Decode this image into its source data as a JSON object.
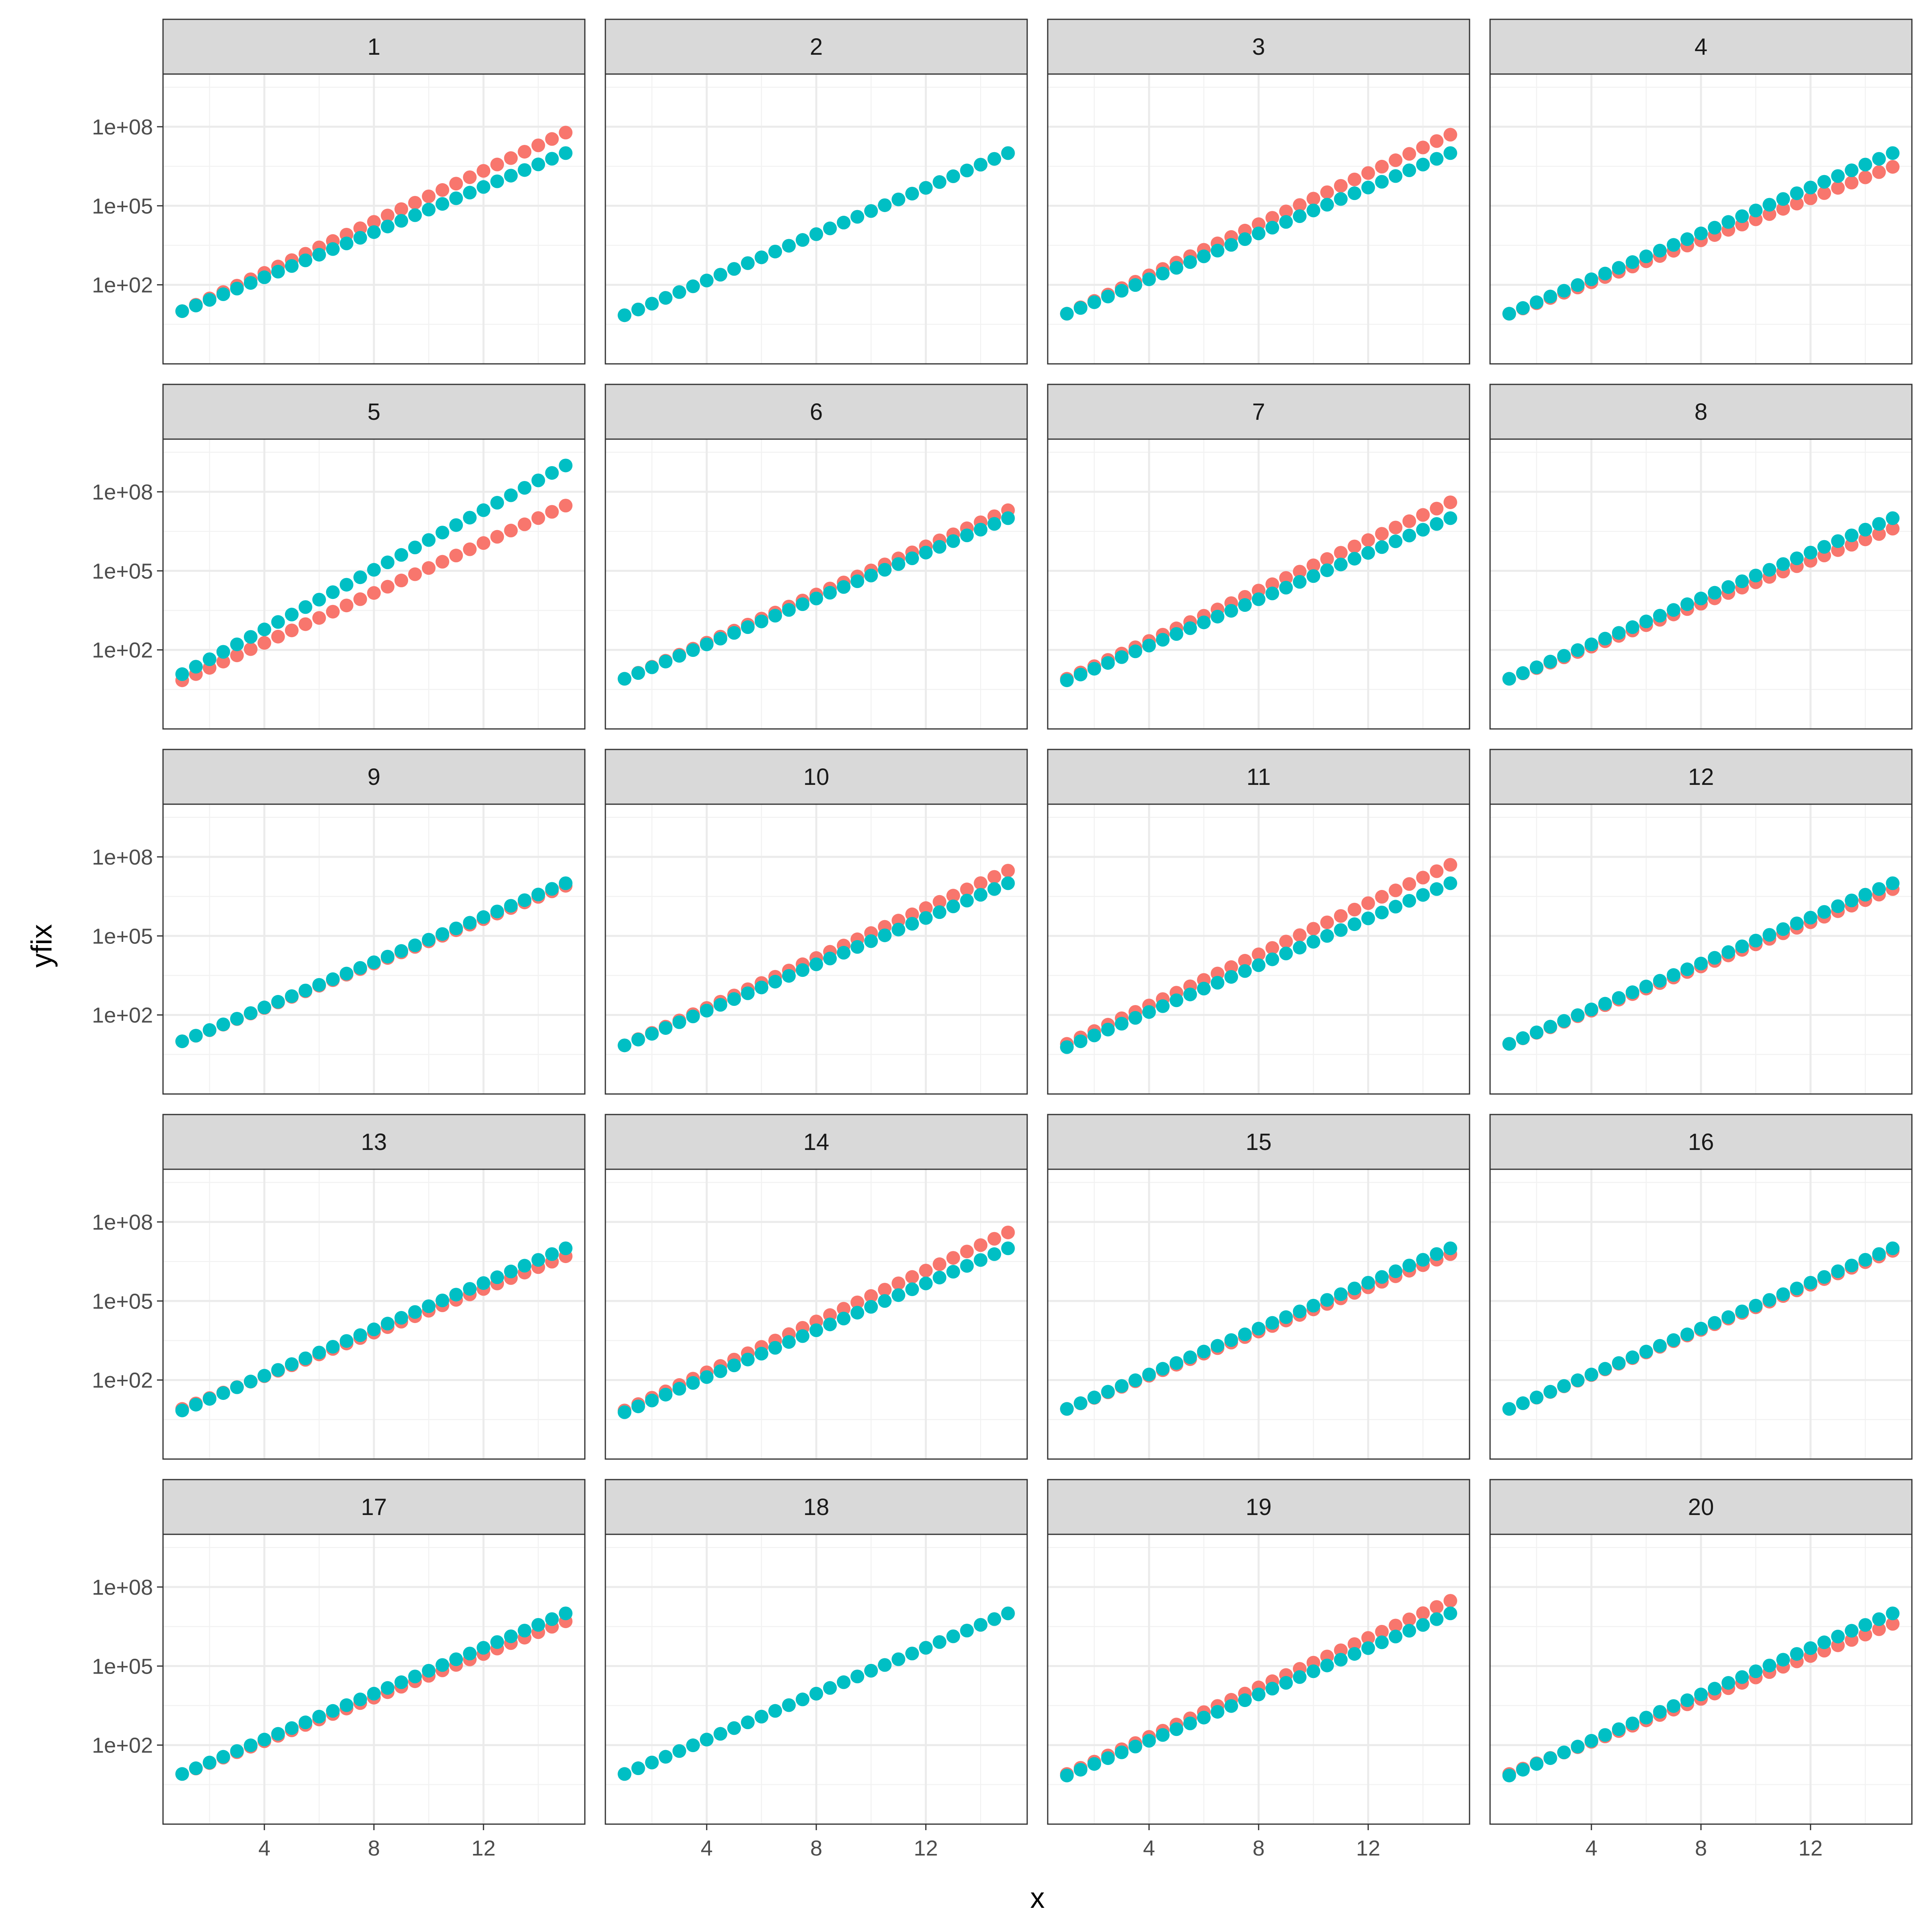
{
  "chart_data": {
    "type": "scatter",
    "facet_layout": "5x4",
    "xlabel": "x",
    "ylabel": "yfix",
    "y_scale": "log10",
    "xlim": [
      0.3,
      15.7
    ],
    "ylim": [
      0.1,
      10000000000
    ],
    "x_ticks": [
      4,
      8,
      12
    ],
    "x_tick_labels": [
      "4",
      "8",
      "12"
    ],
    "y_ticks": [
      100,
      100000,
      100000000
    ],
    "y_tick_labels": [
      "1e+02",
      "1e+05",
      "1e+08"
    ],
    "grid": true,
    "legend": "none",
    "series_colors": [
      "#F8766D",
      "#00BFC4"
    ],
    "x": [
      1,
      1.5,
      2,
      2.5,
      3,
      3.5,
      4,
      4.5,
      5,
      5.5,
      6,
      6.5,
      7,
      7.5,
      8,
      8.5,
      9,
      9.5,
      10,
      10.5,
      11,
      11.5,
      12,
      12.5,
      13,
      13.5,
      14,
      14.5,
      15
    ],
    "panels": [
      {
        "label": "1",
        "red": {
          "y_start": 10,
          "y_end": 60000000
        },
        "teal": {
          "y_start": 10,
          "y_end": 10000000
        }
      },
      {
        "label": "2",
        "red": {
          "y_start": 7,
          "y_end": 10000000
        },
        "teal": {
          "y_start": 7,
          "y_end": 10000000
        }
      },
      {
        "label": "3",
        "red": {
          "y_start": 8,
          "y_end": 50000000
        },
        "teal": {
          "y_start": 8,
          "y_end": 10000000
        }
      },
      {
        "label": "4",
        "red": {
          "y_start": 8,
          "y_end": 3000000
        },
        "teal": {
          "y_start": 8,
          "y_end": 10000000
        }
      },
      {
        "label": "5",
        "red": {
          "y_start": 7,
          "y_end": 30000000
        },
        "teal": {
          "y_start": 12,
          "y_end": 1000000000
        }
      },
      {
        "label": "6",
        "red": {
          "y_start": 8,
          "y_end": 20000000
        },
        "teal": {
          "y_start": 8,
          "y_end": 10000000
        }
      },
      {
        "label": "7",
        "red": {
          "y_start": 8,
          "y_end": 40000000
        },
        "teal": {
          "y_start": 7,
          "y_end": 10000000
        }
      },
      {
        "label": "8",
        "red": {
          "y_start": 8,
          "y_end": 4000000
        },
        "teal": {
          "y_start": 8,
          "y_end": 10000000
        }
      },
      {
        "label": "9",
        "red": {
          "y_start": 10,
          "y_end": 8000000
        },
        "teal": {
          "y_start": 10,
          "y_end": 10000000
        }
      },
      {
        "label": "10",
        "red": {
          "y_start": 7,
          "y_end": 30000000
        },
        "teal": {
          "y_start": 7,
          "y_end": 10000000
        }
      },
      {
        "label": "11",
        "red": {
          "y_start": 8,
          "y_end": 50000000
        },
        "teal": {
          "y_start": 6,
          "y_end": 10000000
        }
      },
      {
        "label": "12",
        "red": {
          "y_start": 8,
          "y_end": 6000000
        },
        "teal": {
          "y_start": 8,
          "y_end": 10000000
        }
      },
      {
        "label": "13",
        "red": {
          "y_start": 8,
          "y_end": 5000000
        },
        "teal": {
          "y_start": 7,
          "y_end": 10000000
        }
      },
      {
        "label": "14",
        "red": {
          "y_start": 7,
          "y_end": 40000000
        },
        "teal": {
          "y_start": 6,
          "y_end": 10000000
        }
      },
      {
        "label": "15",
        "red": {
          "y_start": 8,
          "y_end": 6000000
        },
        "teal": {
          "y_start": 8,
          "y_end": 10000000
        }
      },
      {
        "label": "16",
        "red": {
          "y_start": 8,
          "y_end": 8000000
        },
        "teal": {
          "y_start": 8,
          "y_end": 10000000
        }
      },
      {
        "label": "17",
        "red": {
          "y_start": 8,
          "y_end": 5000000
        },
        "teal": {
          "y_start": 8,
          "y_end": 10000000
        }
      },
      {
        "label": "18",
        "red": {
          "y_start": 8,
          "y_end": 10000000
        },
        "teal": {
          "y_start": 8,
          "y_end": 10000000
        }
      },
      {
        "label": "19",
        "red": {
          "y_start": 8,
          "y_end": 30000000
        },
        "teal": {
          "y_start": 7,
          "y_end": 10000000
        }
      },
      {
        "label": "20",
        "red": {
          "y_start": 8,
          "y_end": 4000000
        },
        "teal": {
          "y_start": 7,
          "y_end": 10000000
        }
      }
    ]
  }
}
